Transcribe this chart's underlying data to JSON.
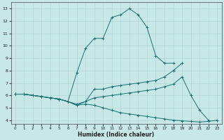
{
  "xlabel": "Humidex (Indice chaleur)",
  "background_color": "#c8e8e8",
  "grid_color": "#b0d4d4",
  "line_color": "#1a7070",
  "xlim": [
    -0.5,
    23.5
  ],
  "ylim": [
    3.7,
    13.5
  ],
  "xticks": [
    0,
    1,
    2,
    3,
    4,
    5,
    6,
    7,
    8,
    9,
    10,
    11,
    12,
    13,
    14,
    15,
    16,
    17,
    18,
    19,
    20,
    21,
    22,
    23
  ],
  "yticks": [
    4,
    5,
    6,
    7,
    8,
    9,
    10,
    11,
    12,
    13
  ],
  "lines": [
    {
      "x": [
        0,
        1,
        2,
        3,
        4,
        5,
        6,
        7,
        8,
        9,
        10,
        11,
        12,
        13,
        14,
        15,
        16,
        17,
        18
      ],
      "y": [
        6.1,
        6.1,
        6.0,
        5.9,
        5.8,
        5.7,
        5.5,
        7.8,
        9.8,
        10.6,
        10.6,
        12.3,
        12.5,
        13.0,
        12.5,
        11.5,
        9.2,
        8.6,
        8.6
      ]
    },
    {
      "x": [
        0,
        1,
        2,
        3,
        4,
        5,
        6,
        7,
        8,
        9,
        10,
        11,
        12,
        13,
        14,
        15,
        16,
        17,
        18,
        19
      ],
      "y": [
        6.1,
        6.1,
        6.0,
        5.9,
        5.8,
        5.7,
        5.5,
        5.3,
        5.5,
        6.5,
        6.5,
        6.7,
        6.8,
        6.9,
        7.0,
        7.1,
        7.2,
        7.5,
        8.0,
        8.6
      ]
    },
    {
      "x": [
        0,
        1,
        2,
        3,
        4,
        5,
        6,
        7,
        8,
        9,
        10,
        11,
        12,
        13,
        14,
        15,
        16,
        17,
        18,
        19,
        20,
        21,
        22
      ],
      "y": [
        6.1,
        6.1,
        6.0,
        5.9,
        5.8,
        5.7,
        5.5,
        5.2,
        5.5,
        5.8,
        5.9,
        6.0,
        6.1,
        6.2,
        6.3,
        6.4,
        6.5,
        6.7,
        6.9,
        7.5,
        6.0,
        4.8,
        4.0
      ]
    },
    {
      "x": [
        0,
        1,
        2,
        3,
        4,
        5,
        6,
        7,
        8,
        9,
        10,
        11,
        12,
        13,
        14,
        15,
        16,
        17,
        18,
        19,
        20,
        21,
        22,
        23
      ],
      "y": [
        6.1,
        6.1,
        6.0,
        5.9,
        5.8,
        5.7,
        5.5,
        5.2,
        5.3,
        5.2,
        5.0,
        4.8,
        4.6,
        4.5,
        4.4,
        4.3,
        4.2,
        4.1,
        4.0,
        3.95,
        3.9,
        3.85,
        3.9,
        4.0
      ]
    }
  ]
}
